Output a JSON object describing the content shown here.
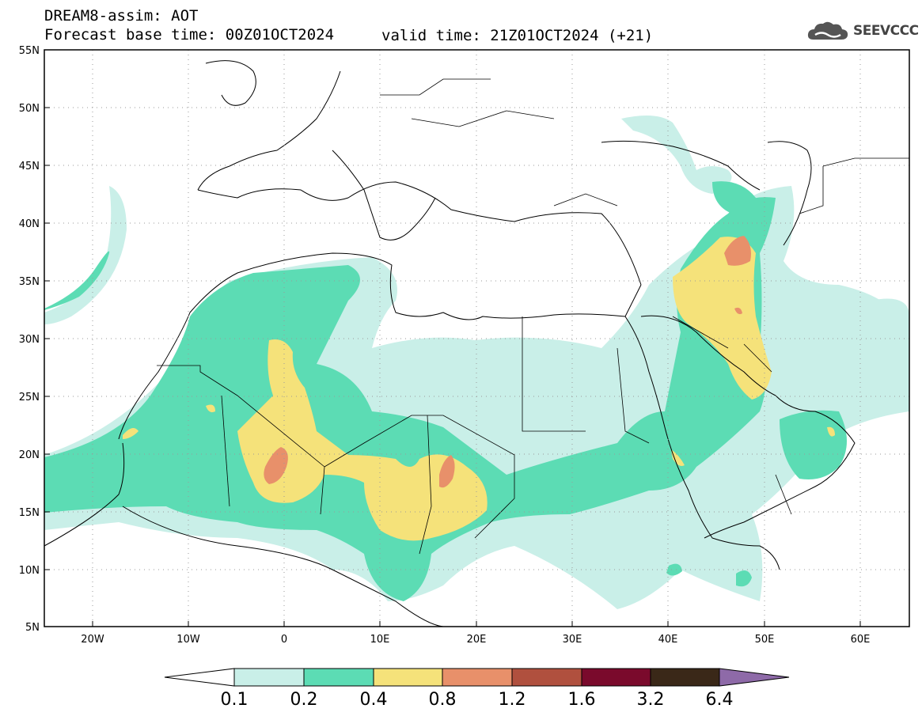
{
  "header": {
    "title": "DREAM8-assim: AOT",
    "base_time": "Forecast base time: 00Z01OCT2024",
    "valid_time": "valid time: 21Z01OCT2024 (+21)",
    "logo_text": "SEEVCCC"
  },
  "axes": {
    "lat_labels": [
      "55N",
      "50N",
      "45N",
      "40N",
      "35N",
      "30N",
      "25N",
      "20N",
      "15N",
      "10N",
      "5N"
    ],
    "lon_labels": [
      "20W",
      "10W",
      "0",
      "10E",
      "20E",
      "30E",
      "40E",
      "50E",
      "60E"
    ]
  },
  "colorbar": {
    "labels": [
      "0.1",
      "0.2",
      "0.4",
      "0.8",
      "1.2",
      "1.6",
      "3.2",
      "6.4"
    ],
    "colors": [
      "#ffffff",
      "#c9efe8",
      "#5cdcb4",
      "#f5e27a",
      "#e8906a",
      "#b0503e",
      "#7a0a2c",
      "#3a2818",
      "#8e6aa8"
    ]
  },
  "palette": {
    "land": "#ffffff",
    "coast": "#000000",
    "grid": "#999999",
    "aot_01": "#c9efe8",
    "aot_02": "#5cdcb4",
    "aot_04": "#f5e27a",
    "aot_08": "#e8906a"
  }
}
